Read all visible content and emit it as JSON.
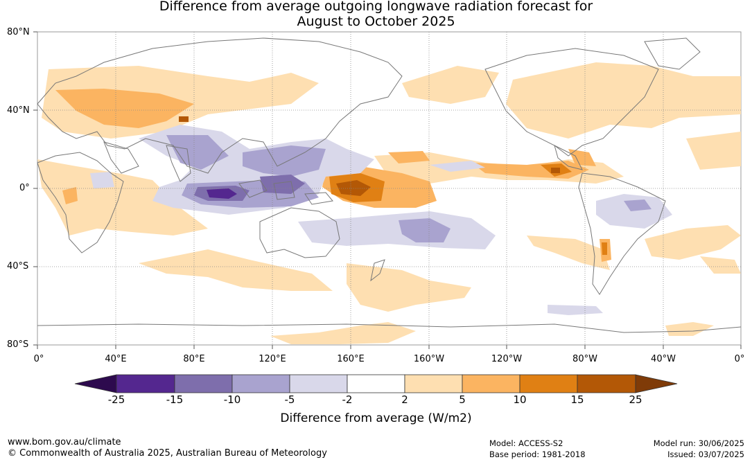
{
  "title_line1": "Difference from average outgoing longwave radiation forecast for",
  "title_line2": "August to October 2025",
  "lat_labels": [
    "80°N",
    "40°N",
    "0°",
    "40°S",
    "80°S"
  ],
  "lon_labels": [
    "0°",
    "40°E",
    "80°E",
    "120°E",
    "160°E",
    "160°W",
    "120°W",
    "80°W",
    "40°W",
    "0°"
  ],
  "colorbar": {
    "title": "Difference from average (W/m2)",
    "tick_labels": [
      "-25",
      "-15",
      "-10",
      "-5",
      "-2",
      "2",
      "5",
      "10",
      "15",
      "25"
    ],
    "colors": {
      "below_min": "#2d0a4e",
      "bin_m25_m15": "#54278f",
      "bin_m15_m10": "#7e6eac",
      "bin_m10_m5": "#a9a3cf",
      "bin_m5_m2": "#d9d8ea",
      "bin_m2_2": "#ffffff",
      "bin_2_5": "#fedfb1",
      "bin_5_10": "#fbb461",
      "bin_10_15": "#e08014",
      "bin_15_25": "#b35806",
      "above_max": "#7f3b08"
    }
  },
  "footer": {
    "url": "www.bom.gov.au/climate",
    "copyright": "© Commonwealth of Australia 2025, Australian Bureau of Meteorology",
    "model": "Model: ACCESS-S2",
    "base_period": "Base period: 1981-2018",
    "model_run": "Model run: 30/06/2025",
    "issued": "Issued: 03/07/2025"
  }
}
